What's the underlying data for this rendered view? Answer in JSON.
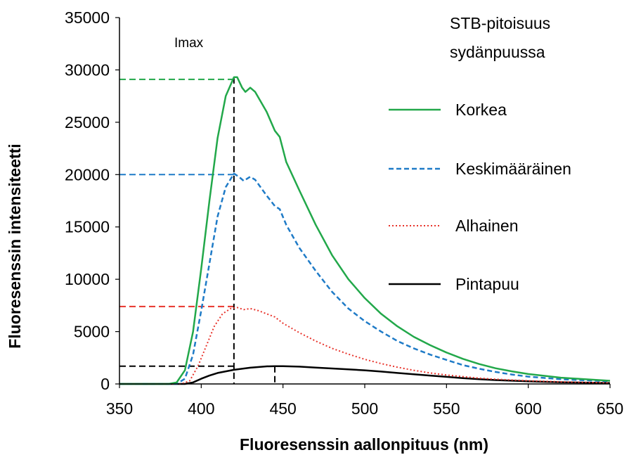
{
  "chart_data": {
    "type": "line",
    "xlabel": "Fluoresenssin aallonpituus (nm)",
    "ylabel": "Fluoresenssin intensiteetti",
    "xlim": [
      350,
      650
    ],
    "ylim": [
      0,
      35000
    ],
    "x_ticks": [
      "350",
      "400",
      "450",
      "500",
      "550",
      "600",
      "650"
    ],
    "y_ticks": [
      "0",
      "5000",
      "10000",
      "15000",
      "20000",
      "25000",
      "30000",
      "35000"
    ],
    "grid": false,
    "legend_title": [
      "STB-pitoisuus",
      "sydänpuussa"
    ],
    "legend_placement": "right",
    "annotation": "Imax",
    "series": [
      {
        "name": "Korkea",
        "color": "#22a84a",
        "dash": "solid",
        "points": [
          [
            350,
            0
          ],
          [
            380,
            0
          ],
          [
            385,
            150
          ],
          [
            390,
            1300
          ],
          [
            395,
            5000
          ],
          [
            400,
            11000
          ],
          [
            405,
            17500
          ],
          [
            410,
            23500
          ],
          [
            415,
            27500
          ],
          [
            420,
            29300
          ],
          [
            422,
            29300
          ],
          [
            425,
            28300
          ],
          [
            427,
            27900
          ],
          [
            430,
            28300
          ],
          [
            433,
            27900
          ],
          [
            440,
            26000
          ],
          [
            445,
            24200
          ],
          [
            448,
            23600
          ],
          [
            452,
            21200
          ],
          [
            460,
            18500
          ],
          [
            470,
            15200
          ],
          [
            480,
            12300
          ],
          [
            490,
            10000
          ],
          [
            500,
            8200
          ],
          [
            510,
            6700
          ],
          [
            520,
            5500
          ],
          [
            530,
            4500
          ],
          [
            540,
            3700
          ],
          [
            550,
            3000
          ],
          [
            560,
            2400
          ],
          [
            570,
            1900
          ],
          [
            580,
            1500
          ],
          [
            590,
            1200
          ],
          [
            600,
            950
          ],
          [
            620,
            600
          ],
          [
            650,
            300
          ]
        ]
      },
      {
        "name": "Keskimääräinen",
        "color": "#1f7bc7",
        "dash": "7,4",
        "points": [
          [
            350,
            0
          ],
          [
            385,
            0
          ],
          [
            390,
            500
          ],
          [
            395,
            2800
          ],
          [
            400,
            7000
          ],
          [
            405,
            11500
          ],
          [
            410,
            16000
          ],
          [
            415,
            18800
          ],
          [
            420,
            20100
          ],
          [
            423,
            19800
          ],
          [
            426,
            19400
          ],
          [
            430,
            19800
          ],
          [
            433,
            19500
          ],
          [
            440,
            18000
          ],
          [
            445,
            17000
          ],
          [
            448,
            16700
          ],
          [
            452,
            15200
          ],
          [
            460,
            13000
          ],
          [
            470,
            10800
          ],
          [
            480,
            8800
          ],
          [
            490,
            7200
          ],
          [
            500,
            6000
          ],
          [
            510,
            5000
          ],
          [
            520,
            4100
          ],
          [
            530,
            3400
          ],
          [
            540,
            2800
          ],
          [
            550,
            2300
          ],
          [
            560,
            1800
          ],
          [
            570,
            1450
          ],
          [
            580,
            1150
          ],
          [
            590,
            900
          ],
          [
            600,
            700
          ],
          [
            620,
            450
          ],
          [
            650,
            250
          ]
        ]
      },
      {
        "name": "Alhainen",
        "color": "#e8332b",
        "dash": "2,3",
        "points": [
          [
            350,
            0
          ],
          [
            388,
            0
          ],
          [
            393,
            300
          ],
          [
            398,
            1700
          ],
          [
            403,
            3600
          ],
          [
            408,
            5500
          ],
          [
            413,
            6700
          ],
          [
            418,
            7200
          ],
          [
            422,
            7300
          ],
          [
            426,
            7100
          ],
          [
            430,
            7200
          ],
          [
            435,
            7000
          ],
          [
            440,
            6700
          ],
          [
            445,
            6400
          ],
          [
            450,
            5800
          ],
          [
            460,
            4900
          ],
          [
            470,
            4100
          ],
          [
            480,
            3400
          ],
          [
            490,
            2850
          ],
          [
            500,
            2350
          ],
          [
            510,
            1950
          ],
          [
            520,
            1600
          ],
          [
            530,
            1300
          ],
          [
            540,
            1050
          ],
          [
            550,
            850
          ],
          [
            560,
            700
          ],
          [
            570,
            550
          ],
          [
            580,
            450
          ],
          [
            600,
            300
          ],
          [
            620,
            200
          ],
          [
            650,
            100
          ]
        ]
      },
      {
        "name": "Pintapuu",
        "color": "#000000",
        "dash": "solid",
        "points": [
          [
            350,
            0
          ],
          [
            390,
            0
          ],
          [
            395,
            150
          ],
          [
            400,
            500
          ],
          [
            405,
            800
          ],
          [
            410,
            1050
          ],
          [
            420,
            1350
          ],
          [
            430,
            1550
          ],
          [
            440,
            1680
          ],
          [
            445,
            1700
          ],
          [
            450,
            1690
          ],
          [
            460,
            1650
          ],
          [
            470,
            1560
          ],
          [
            480,
            1480
          ],
          [
            490,
            1390
          ],
          [
            500,
            1300
          ],
          [
            510,
            1180
          ],
          [
            520,
            1050
          ],
          [
            530,
            920
          ],
          [
            540,
            800
          ],
          [
            550,
            680
          ],
          [
            560,
            560
          ],
          [
            570,
            460
          ],
          [
            580,
            370
          ],
          [
            600,
            250
          ],
          [
            620,
            160
          ],
          [
            650,
            80
          ]
        ]
      }
    ],
    "reference_lines": [
      {
        "color": "#22a84a",
        "y": 29100,
        "x_end": 420
      },
      {
        "color": "#1f7bc7",
        "y": 20000,
        "x_end": 420
      },
      {
        "color": "#e8332b",
        "y": 7400,
        "x_end": 420
      },
      {
        "color": "#000000",
        "y": 1700,
        "x_end": 420
      },
      {
        "color": "#000000",
        "vertical": true,
        "x": 420,
        "y_top": 29300
      },
      {
        "color": "#000000",
        "vertical": true,
        "x": 445,
        "y_top": 1700
      }
    ]
  }
}
